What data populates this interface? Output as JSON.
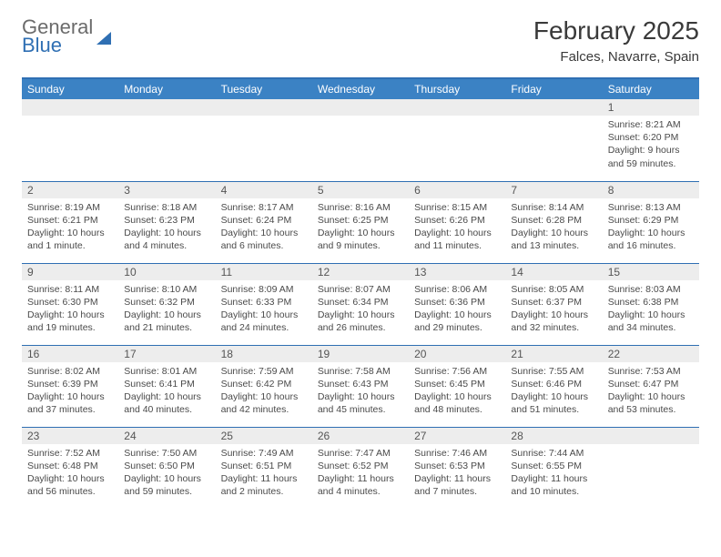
{
  "logo": {
    "line1": "General",
    "line2": "Blue"
  },
  "title": "February 2025",
  "subtitle": "Falces, Navarre, Spain",
  "colors": {
    "header_bg": "#3b82c4",
    "header_text": "#ffffff",
    "row_border": "#2f6fb3",
    "daynum_bg": "#ededed",
    "body_text": "#4a4a4a",
    "page_bg": "#ffffff"
  },
  "columns": [
    "Sunday",
    "Monday",
    "Tuesday",
    "Wednesday",
    "Thursday",
    "Friday",
    "Saturday"
  ],
  "weeks": [
    [
      {
        "n": "",
        "sunrise": "",
        "sunset": "",
        "daylight": ""
      },
      {
        "n": "",
        "sunrise": "",
        "sunset": "",
        "daylight": ""
      },
      {
        "n": "",
        "sunrise": "",
        "sunset": "",
        "daylight": ""
      },
      {
        "n": "",
        "sunrise": "",
        "sunset": "",
        "daylight": ""
      },
      {
        "n": "",
        "sunrise": "",
        "sunset": "",
        "daylight": ""
      },
      {
        "n": "",
        "sunrise": "",
        "sunset": "",
        "daylight": ""
      },
      {
        "n": "1",
        "sunrise": "Sunrise: 8:21 AM",
        "sunset": "Sunset: 6:20 PM",
        "daylight": "Daylight: 9 hours and 59 minutes."
      }
    ],
    [
      {
        "n": "2",
        "sunrise": "Sunrise: 8:19 AM",
        "sunset": "Sunset: 6:21 PM",
        "daylight": "Daylight: 10 hours and 1 minute."
      },
      {
        "n": "3",
        "sunrise": "Sunrise: 8:18 AM",
        "sunset": "Sunset: 6:23 PM",
        "daylight": "Daylight: 10 hours and 4 minutes."
      },
      {
        "n": "4",
        "sunrise": "Sunrise: 8:17 AM",
        "sunset": "Sunset: 6:24 PM",
        "daylight": "Daylight: 10 hours and 6 minutes."
      },
      {
        "n": "5",
        "sunrise": "Sunrise: 8:16 AM",
        "sunset": "Sunset: 6:25 PM",
        "daylight": "Daylight: 10 hours and 9 minutes."
      },
      {
        "n": "6",
        "sunrise": "Sunrise: 8:15 AM",
        "sunset": "Sunset: 6:26 PM",
        "daylight": "Daylight: 10 hours and 11 minutes."
      },
      {
        "n": "7",
        "sunrise": "Sunrise: 8:14 AM",
        "sunset": "Sunset: 6:28 PM",
        "daylight": "Daylight: 10 hours and 13 minutes."
      },
      {
        "n": "8",
        "sunrise": "Sunrise: 8:13 AM",
        "sunset": "Sunset: 6:29 PM",
        "daylight": "Daylight: 10 hours and 16 minutes."
      }
    ],
    [
      {
        "n": "9",
        "sunrise": "Sunrise: 8:11 AM",
        "sunset": "Sunset: 6:30 PM",
        "daylight": "Daylight: 10 hours and 19 minutes."
      },
      {
        "n": "10",
        "sunrise": "Sunrise: 8:10 AM",
        "sunset": "Sunset: 6:32 PM",
        "daylight": "Daylight: 10 hours and 21 minutes."
      },
      {
        "n": "11",
        "sunrise": "Sunrise: 8:09 AM",
        "sunset": "Sunset: 6:33 PM",
        "daylight": "Daylight: 10 hours and 24 minutes."
      },
      {
        "n": "12",
        "sunrise": "Sunrise: 8:07 AM",
        "sunset": "Sunset: 6:34 PM",
        "daylight": "Daylight: 10 hours and 26 minutes."
      },
      {
        "n": "13",
        "sunrise": "Sunrise: 8:06 AM",
        "sunset": "Sunset: 6:36 PM",
        "daylight": "Daylight: 10 hours and 29 minutes."
      },
      {
        "n": "14",
        "sunrise": "Sunrise: 8:05 AM",
        "sunset": "Sunset: 6:37 PM",
        "daylight": "Daylight: 10 hours and 32 minutes."
      },
      {
        "n": "15",
        "sunrise": "Sunrise: 8:03 AM",
        "sunset": "Sunset: 6:38 PM",
        "daylight": "Daylight: 10 hours and 34 minutes."
      }
    ],
    [
      {
        "n": "16",
        "sunrise": "Sunrise: 8:02 AM",
        "sunset": "Sunset: 6:39 PM",
        "daylight": "Daylight: 10 hours and 37 minutes."
      },
      {
        "n": "17",
        "sunrise": "Sunrise: 8:01 AM",
        "sunset": "Sunset: 6:41 PM",
        "daylight": "Daylight: 10 hours and 40 minutes."
      },
      {
        "n": "18",
        "sunrise": "Sunrise: 7:59 AM",
        "sunset": "Sunset: 6:42 PM",
        "daylight": "Daylight: 10 hours and 42 minutes."
      },
      {
        "n": "19",
        "sunrise": "Sunrise: 7:58 AM",
        "sunset": "Sunset: 6:43 PM",
        "daylight": "Daylight: 10 hours and 45 minutes."
      },
      {
        "n": "20",
        "sunrise": "Sunrise: 7:56 AM",
        "sunset": "Sunset: 6:45 PM",
        "daylight": "Daylight: 10 hours and 48 minutes."
      },
      {
        "n": "21",
        "sunrise": "Sunrise: 7:55 AM",
        "sunset": "Sunset: 6:46 PM",
        "daylight": "Daylight: 10 hours and 51 minutes."
      },
      {
        "n": "22",
        "sunrise": "Sunrise: 7:53 AM",
        "sunset": "Sunset: 6:47 PM",
        "daylight": "Daylight: 10 hours and 53 minutes."
      }
    ],
    [
      {
        "n": "23",
        "sunrise": "Sunrise: 7:52 AM",
        "sunset": "Sunset: 6:48 PM",
        "daylight": "Daylight: 10 hours and 56 minutes."
      },
      {
        "n": "24",
        "sunrise": "Sunrise: 7:50 AM",
        "sunset": "Sunset: 6:50 PM",
        "daylight": "Daylight: 10 hours and 59 minutes."
      },
      {
        "n": "25",
        "sunrise": "Sunrise: 7:49 AM",
        "sunset": "Sunset: 6:51 PM",
        "daylight": "Daylight: 11 hours and 2 minutes."
      },
      {
        "n": "26",
        "sunrise": "Sunrise: 7:47 AM",
        "sunset": "Sunset: 6:52 PM",
        "daylight": "Daylight: 11 hours and 4 minutes."
      },
      {
        "n": "27",
        "sunrise": "Sunrise: 7:46 AM",
        "sunset": "Sunset: 6:53 PM",
        "daylight": "Daylight: 11 hours and 7 minutes."
      },
      {
        "n": "28",
        "sunrise": "Sunrise: 7:44 AM",
        "sunset": "Sunset: 6:55 PM",
        "daylight": "Daylight: 11 hours and 10 minutes."
      },
      {
        "n": "",
        "sunrise": "",
        "sunset": "",
        "daylight": ""
      }
    ]
  ]
}
